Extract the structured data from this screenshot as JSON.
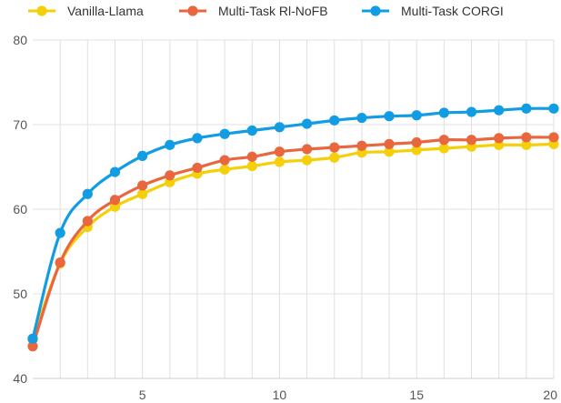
{
  "chart_data": {
    "type": "line",
    "title": "",
    "xlabel": "",
    "ylabel": "",
    "xlim": [
      1,
      20
    ],
    "ylim": [
      40,
      80
    ],
    "x_ticks": [
      5,
      10,
      15,
      20
    ],
    "y_ticks": [
      40,
      50,
      60,
      70,
      80
    ],
    "grid": true,
    "legend_position": "top-left",
    "x": [
      1,
      2,
      3,
      4,
      5,
      6,
      7,
      8,
      9,
      10,
      11,
      12,
      13,
      14,
      15,
      16,
      17,
      18,
      19,
      20
    ],
    "series": [
      {
        "name": "Vanilla-Llama",
        "color": "#f5cf0a",
        "values": [
          44.6,
          53.6,
          57.9,
          60.3,
          61.8,
          63.2,
          64.2,
          64.7,
          65.1,
          65.6,
          65.8,
          66.1,
          66.7,
          66.8,
          67.0,
          67.2,
          67.4,
          67.6,
          67.6,
          67.7
        ]
      },
      {
        "name": "Multi-Task Rl-NoFB",
        "color": "#e8673e",
        "values": [
          43.8,
          53.7,
          58.6,
          61.1,
          62.8,
          64.0,
          64.9,
          65.8,
          66.2,
          66.8,
          67.1,
          67.3,
          67.5,
          67.7,
          67.9,
          68.2,
          68.2,
          68.4,
          68.5,
          68.5
        ]
      },
      {
        "name": "Multi-Task CORGI",
        "color": "#119ce3",
        "values": [
          44.7,
          57.2,
          61.8,
          64.4,
          66.3,
          67.6,
          68.4,
          68.9,
          69.3,
          69.7,
          70.1,
          70.5,
          70.8,
          71.0,
          71.1,
          71.4,
          71.5,
          71.7,
          71.9,
          71.9
        ]
      }
    ]
  }
}
